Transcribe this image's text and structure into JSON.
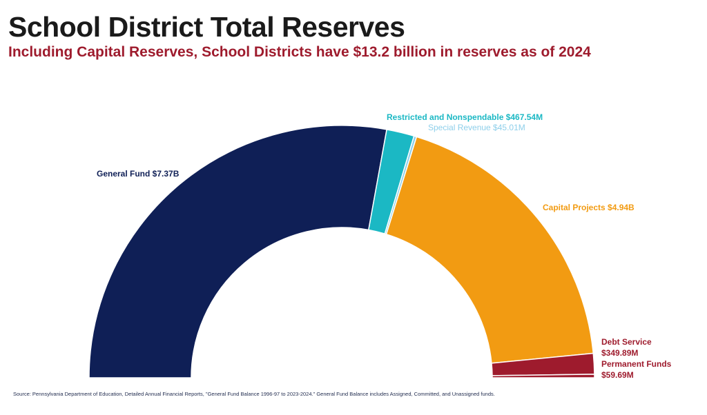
{
  "title": "School District Total Reserves",
  "subtitle": "Including Capital Reserves, School Districts have $13.2 billion in reserves as of 2024",
  "source": "Source: Pennsylvania Department of Education, Detailed Annual Financial Reports, \"General Fund Balance 1996-97 to 2023-2024.\" General Fund Balance includes Assigned, Committed, and Unassigned funds.",
  "chart_data": {
    "type": "pie",
    "subtype": "half-donut",
    "unit": "USD",
    "total_label": "$13.2 billion",
    "slices": [
      {
        "name": "General Fund",
        "label": "General Fund $7.37B",
        "value": 7370000000,
        "color": "#0f1f56"
      },
      {
        "name": "Restricted and Nonspendable",
        "label": "Restricted and Nonspendable $467.54M",
        "value": 467540000,
        "color": "#1bb8c4"
      },
      {
        "name": "Special Revenue",
        "label": "Special Revenue $45.01M",
        "value": 45010000,
        "color": "#8ecfea"
      },
      {
        "name": "Capital Projects",
        "label": "Capital Projects $4.94B",
        "value": 4940000000,
        "color": "#f29b12"
      },
      {
        "name": "Debt Service",
        "label": "Debt Service",
        "label2": "$349.89M",
        "value": 349890000,
        "color": "#9e1b2d"
      },
      {
        "name": "Permanent Funds",
        "label": "Permanent Funds",
        "label2": "$59.69M",
        "value": 59690000,
        "color": "#9e1b2d"
      }
    ]
  }
}
